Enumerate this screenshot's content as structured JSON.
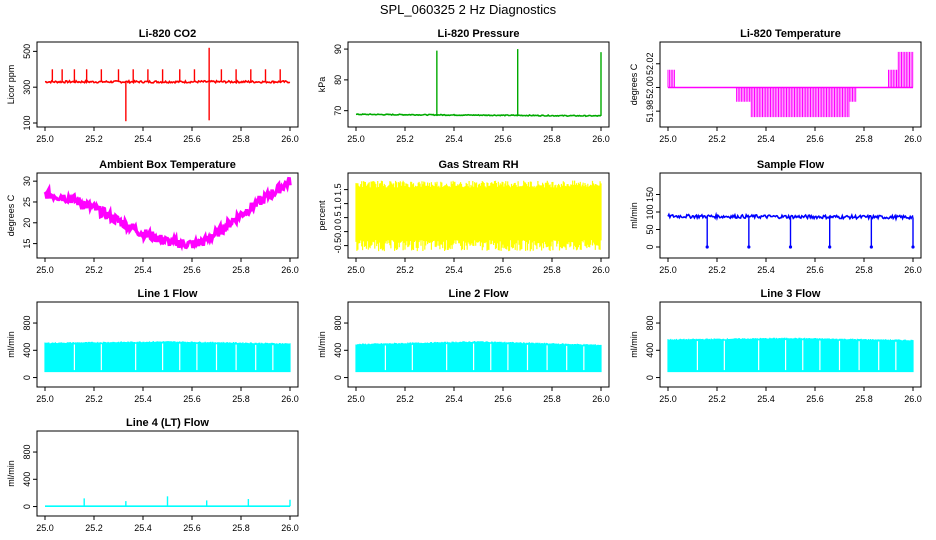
{
  "page": {
    "title": "SPL_060325  2 Hz Diagnostics"
  },
  "chart_data": [
    {
      "id": "co2",
      "type": "line",
      "title": "Li-820 CO2",
      "ylabel": "Licor ppm",
      "color": "#ff0000",
      "xlim": [
        25.0,
        26.0
      ],
      "ylim": [
        100,
        530
      ],
      "xticks": [
        "25.0",
        "25.2",
        "25.4",
        "25.6",
        "25.8",
        "26.0"
      ],
      "xtick_values": [
        25.0,
        25.2,
        25.4,
        25.6,
        25.8,
        26.0
      ],
      "yticks": [
        "100",
        "300",
        "500"
      ],
      "ytick_values": [
        100,
        300,
        500
      ],
      "series": [
        {
          "x": [
            25.0,
            26.0
          ],
          "y": [
            330,
            330
          ]
        }
      ],
      "spikes_up": {
        "x": [
          25.03,
          25.07,
          25.12,
          25.17,
          25.23,
          25.3,
          25.36,
          25.42,
          25.48,
          25.55,
          25.61,
          25.67,
          25.72,
          25.78,
          25.84,
          25.9,
          25.96
        ],
        "y": [
          400,
          400,
          400,
          400,
          400,
          400,
          400,
          400,
          400,
          400,
          400,
          520,
          400,
          400,
          400,
          400,
          400
        ]
      },
      "spikes_down": {
        "x": [
          25.33,
          25.67
        ],
        "y": [
          110,
          115
        ]
      }
    },
    {
      "id": "pressure",
      "type": "line",
      "title": "Li-820 Pressure",
      "ylabel": "kPa",
      "color": "#00aa00",
      "xlim": [
        25.0,
        26.0
      ],
      "ylim": [
        66,
        91
      ],
      "xticks": [
        "25.0",
        "25.2",
        "25.4",
        "25.6",
        "25.8",
        "26.0"
      ],
      "xtick_values": [
        25.0,
        25.2,
        25.4,
        25.6,
        25.8,
        26.0
      ],
      "yticks": [
        "70",
        "80",
        "90"
      ],
      "ytick_values": [
        70,
        80,
        90
      ],
      "series": [
        {
          "x": [
            25.0,
            26.0
          ],
          "y": [
            68.8,
            68.3
          ]
        }
      ],
      "spikes_up": {
        "x": [
          25.33,
          25.66,
          26.0
        ],
        "y": [
          89.5,
          90,
          89
        ]
      },
      "spikes_down": {
        "x": [],
        "y": []
      }
    },
    {
      "id": "licor-temp",
      "type": "line",
      "title": "Li-820 Temperature",
      "ylabel": "degrees C",
      "color": "#ff00ff",
      "xlim": [
        25.0,
        26.0
      ],
      "ylim": [
        51.97,
        52.035
      ],
      "xticks": [
        "25.0",
        "25.2",
        "25.4",
        "25.6",
        "25.8",
        "26.0"
      ],
      "xtick_values": [
        25.0,
        25.2,
        25.4,
        25.6,
        25.8,
        26.0
      ],
      "yticks": [
        "51.98",
        "52.00",
        "52.02"
      ],
      "ytick_values": [
        51.98,
        52.0,
        52.02
      ],
      "series": [
        {
          "x": [
            25.0,
            26.0
          ],
          "y": [
            52.0,
            52.0
          ]
        }
      ],
      "bands": [
        {
          "x0": 25.0,
          "x1": 25.03,
          "y0": 52.0,
          "y1": 52.015
        },
        {
          "x0": 25.28,
          "x1": 25.34,
          "y0": 51.988,
          "y1": 52.0
        },
        {
          "x0": 25.34,
          "x1": 25.74,
          "y0": 51.975,
          "y1": 52.0
        },
        {
          "x0": 25.74,
          "x1": 25.77,
          "y0": 51.988,
          "y1": 52.0
        },
        {
          "x0": 25.9,
          "x1": 25.94,
          "y0": 52.0,
          "y1": 52.015
        },
        {
          "x0": 25.94,
          "x1": 26.0,
          "y0": 52.0,
          "y1": 52.03
        }
      ]
    },
    {
      "id": "ambient-temp",
      "type": "line",
      "title": "Ambient Box Temperature",
      "ylabel": "degrees C",
      "color": "#ff00ff",
      "xlim": [
        25.0,
        26.0
      ],
      "ylim": [
        12.5,
        31
      ],
      "xticks": [
        "25.0",
        "25.2",
        "25.4",
        "25.6",
        "25.8",
        "26.0"
      ],
      "xtick_values": [
        25.0,
        25.2,
        25.4,
        25.6,
        25.8,
        26.0
      ],
      "yticks": [
        "15",
        "20",
        "25",
        "30"
      ],
      "ytick_values": [
        15,
        20,
        25,
        30
      ],
      "series": [
        {
          "x": [
            25.0,
            25.1,
            25.2,
            25.3,
            25.4,
            25.5,
            25.6,
            25.65,
            25.7,
            25.8,
            25.9,
            26.0
          ],
          "y": [
            27,
            26,
            23.5,
            20.5,
            17.5,
            15.5,
            14.8,
            15.5,
            17.5,
            22,
            26,
            30
          ]
        }
      ],
      "noise": 1.2
    },
    {
      "id": "gas-rh",
      "type": "area",
      "title": "Gas Stream RH",
      "ylabel": "percent",
      "color": "#ffff00",
      "xlim": [
        25.0,
        26.0
      ],
      "ylim": [
        -0.8,
        1.95
      ],
      "xticks": [
        "25.0",
        "25.2",
        "25.4",
        "25.6",
        "25.8",
        "26.0"
      ],
      "xtick_values": [
        25.0,
        25.2,
        25.4,
        25.6,
        25.8,
        26.0
      ],
      "yticks": [
        "-0.5",
        "0.0",
        "0.5",
        "1.0",
        "1.5"
      ],
      "ytick_values": [
        -0.5,
        0.0,
        0.5,
        1.0,
        1.5
      ],
      "series": [
        {
          "x": [
            25.0,
            26.0
          ],
          "y": [
            1.7,
            1.7
          ]
        }
      ],
      "band_bottom": -0.7
    },
    {
      "id": "sample-flow",
      "type": "line",
      "title": "Sample Flow",
      "ylabel": "ml/min",
      "color": "#0000ff",
      "xlim": [
        25.0,
        26.0
      ],
      "ylim": [
        -20,
        200
      ],
      "xticks": [
        "25.0",
        "25.2",
        "25.4",
        "25.6",
        "25.8",
        "26.0"
      ],
      "xtick_values": [
        25.0,
        25.2,
        25.4,
        25.6,
        25.8,
        26.0
      ],
      "yticks": [
        "0",
        "50",
        "100",
        "150"
      ],
      "ytick_values": [
        0,
        50,
        100,
        150
      ],
      "series": [
        {
          "x": [
            25.0,
            26.0
          ],
          "y": [
            88,
            85
          ]
        }
      ],
      "spikes_down": {
        "x": [
          25.16,
          25.33,
          25.5,
          25.66,
          25.83,
          26.0
        ],
        "y": [
          0,
          0,
          0,
          0,
          0,
          0
        ]
      },
      "spikes_up": {
        "x": [],
        "y": []
      }
    },
    {
      "id": "line1-flow",
      "type": "area",
      "title": "Line 1 Flow",
      "ylabel": "ml/min",
      "color": "#00ffff",
      "xlim": [
        25.0,
        26.0
      ],
      "ylim": [
        -80,
        1050
      ],
      "xticks": [
        "25.0",
        "25.2",
        "25.4",
        "25.6",
        "25.8",
        "26.0"
      ],
      "xtick_values": [
        25.0,
        25.2,
        25.4,
        25.6,
        25.8,
        26.0
      ],
      "yticks": [
        "0",
        "400",
        "800"
      ],
      "ytick_values": [
        0,
        400,
        800
      ],
      "series": [
        {
          "x": [
            25.0,
            25.5,
            26.0
          ],
          "y": [
            510,
            530,
            500
          ]
        }
      ],
      "band_bottom": 80
    },
    {
      "id": "line2-flow",
      "type": "area",
      "title": "Line 2 Flow",
      "ylabel": "ml/min",
      "color": "#00ffff",
      "xlim": [
        25.0,
        26.0
      ],
      "ylim": [
        -80,
        1050
      ],
      "xticks": [
        "25.0",
        "25.2",
        "25.4",
        "25.6",
        "25.8",
        "26.0"
      ],
      "xtick_values": [
        25.0,
        25.2,
        25.4,
        25.6,
        25.8,
        26.0
      ],
      "yticks": [
        "0",
        "400",
        "800"
      ],
      "ytick_values": [
        0,
        400,
        800
      ],
      "series": [
        {
          "x": [
            25.0,
            25.5,
            26.0
          ],
          "y": [
            490,
            530,
            480
          ]
        }
      ],
      "band_bottom": 80
    },
    {
      "id": "line3-flow",
      "type": "area",
      "title": "Line 3 Flow",
      "ylabel": "ml/min",
      "color": "#00ffff",
      "xlim": [
        25.0,
        26.0
      ],
      "ylim": [
        -80,
        1050
      ],
      "xticks": [
        "25.0",
        "25.2",
        "25.4",
        "25.6",
        "25.8",
        "26.0"
      ],
      "xtick_values": [
        25.0,
        25.2,
        25.4,
        25.6,
        25.8,
        26.0
      ],
      "yticks": [
        "0",
        "400",
        "800"
      ],
      "ytick_values": [
        0,
        400,
        800
      ],
      "series": [
        {
          "x": [
            25.0,
            25.5,
            26.0
          ],
          "y": [
            560,
            580,
            550
          ]
        }
      ],
      "band_bottom": 80
    },
    {
      "id": "line4-flow",
      "type": "line",
      "title": "Line 4 (LT) Flow",
      "ylabel": "ml/min",
      "color": "#00ffff",
      "xlim": [
        25.0,
        26.0
      ],
      "ylim": [
        -80,
        1050
      ],
      "xticks": [
        "25.0",
        "25.2",
        "25.4",
        "25.6",
        "25.8",
        "26.0"
      ],
      "xtick_values": [
        25.0,
        25.2,
        25.4,
        25.6,
        25.8,
        26.0
      ],
      "yticks": [
        "0",
        "400",
        "800"
      ],
      "ytick_values": [
        0,
        400,
        800
      ],
      "series": [
        {
          "x": [
            25.0,
            26.0
          ],
          "y": [
            5,
            5
          ]
        }
      ],
      "spikes_up": {
        "x": [
          25.16,
          25.33,
          25.5,
          25.66,
          25.83,
          26.0
        ],
        "y": [
          120,
          80,
          150,
          90,
          110,
          100
        ]
      },
      "spikes_down": {
        "x": [],
        "y": []
      }
    }
  ]
}
